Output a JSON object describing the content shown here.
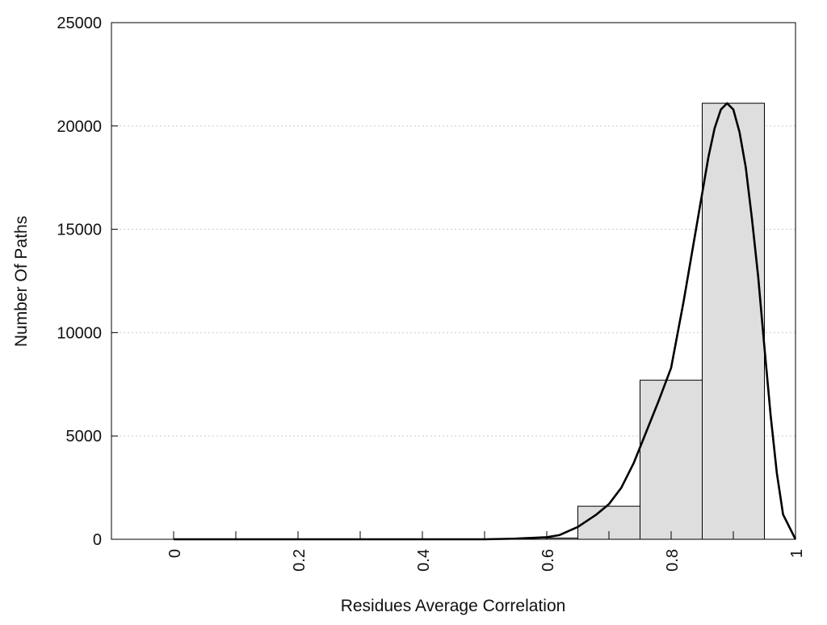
{
  "chart_data": {
    "type": "bar",
    "xlabel": "Residues Average Correlation",
    "ylabel": "Number Of Paths",
    "xlim": [
      -0.1,
      1.0
    ],
    "ylim": [
      0,
      25000
    ],
    "x_ticks": [
      0,
      0.1,
      0.2,
      0.3,
      0.4,
      0.5,
      0.6,
      0.7,
      0.8,
      0.9,
      1.0
    ],
    "x_tick_labels": [
      {
        "value": 0,
        "label": "0"
      },
      {
        "value": 0.2,
        "label": "0.2"
      },
      {
        "value": 0.4,
        "label": "0.4"
      },
      {
        "value": 0.6,
        "label": "0.6"
      },
      {
        "value": 0.8,
        "label": "0.8"
      },
      {
        "value": 1.0,
        "label": "1"
      }
    ],
    "y_ticks": [
      {
        "value": 0,
        "label": "0"
      },
      {
        "value": 5000,
        "label": "5000"
      },
      {
        "value": 10000,
        "label": "10000"
      },
      {
        "value": 15000,
        "label": "15000"
      },
      {
        "value": 20000,
        "label": "20000"
      },
      {
        "value": 25000,
        "label": "25000"
      }
    ],
    "grid": "horizontal dotted",
    "bar_color": "#dedede",
    "bar_edge_color": "#000000",
    "line_color": "#000000",
    "bins": [
      {
        "x0": 0.55,
        "x1": 0.65,
        "value": 60
      },
      {
        "x0": 0.65,
        "x1": 0.75,
        "value": 1600
      },
      {
        "x0": 0.75,
        "x1": 0.85,
        "value": 7700
      },
      {
        "x0": 0.85,
        "x1": 0.95,
        "value": 21100
      }
    ],
    "fit_curve": {
      "x": [
        0.0,
        0.5,
        0.55,
        0.6,
        0.62,
        0.65,
        0.68,
        0.7,
        0.72,
        0.74,
        0.76,
        0.78,
        0.8,
        0.82,
        0.84,
        0.86,
        0.87,
        0.88,
        0.89,
        0.9,
        0.91,
        0.92,
        0.93,
        0.94,
        0.95,
        0.96,
        0.97,
        0.98,
        1.0
      ],
      "y": [
        0,
        0,
        30,
        100,
        200,
        600,
        1200,
        1700,
        2500,
        3700,
        5200,
        6700,
        8300,
        11500,
        15000,
        18500,
        19900,
        20800,
        21100,
        20800,
        19700,
        18000,
        15500,
        12700,
        9300,
        6000,
        3200,
        1200,
        0
      ]
    }
  }
}
